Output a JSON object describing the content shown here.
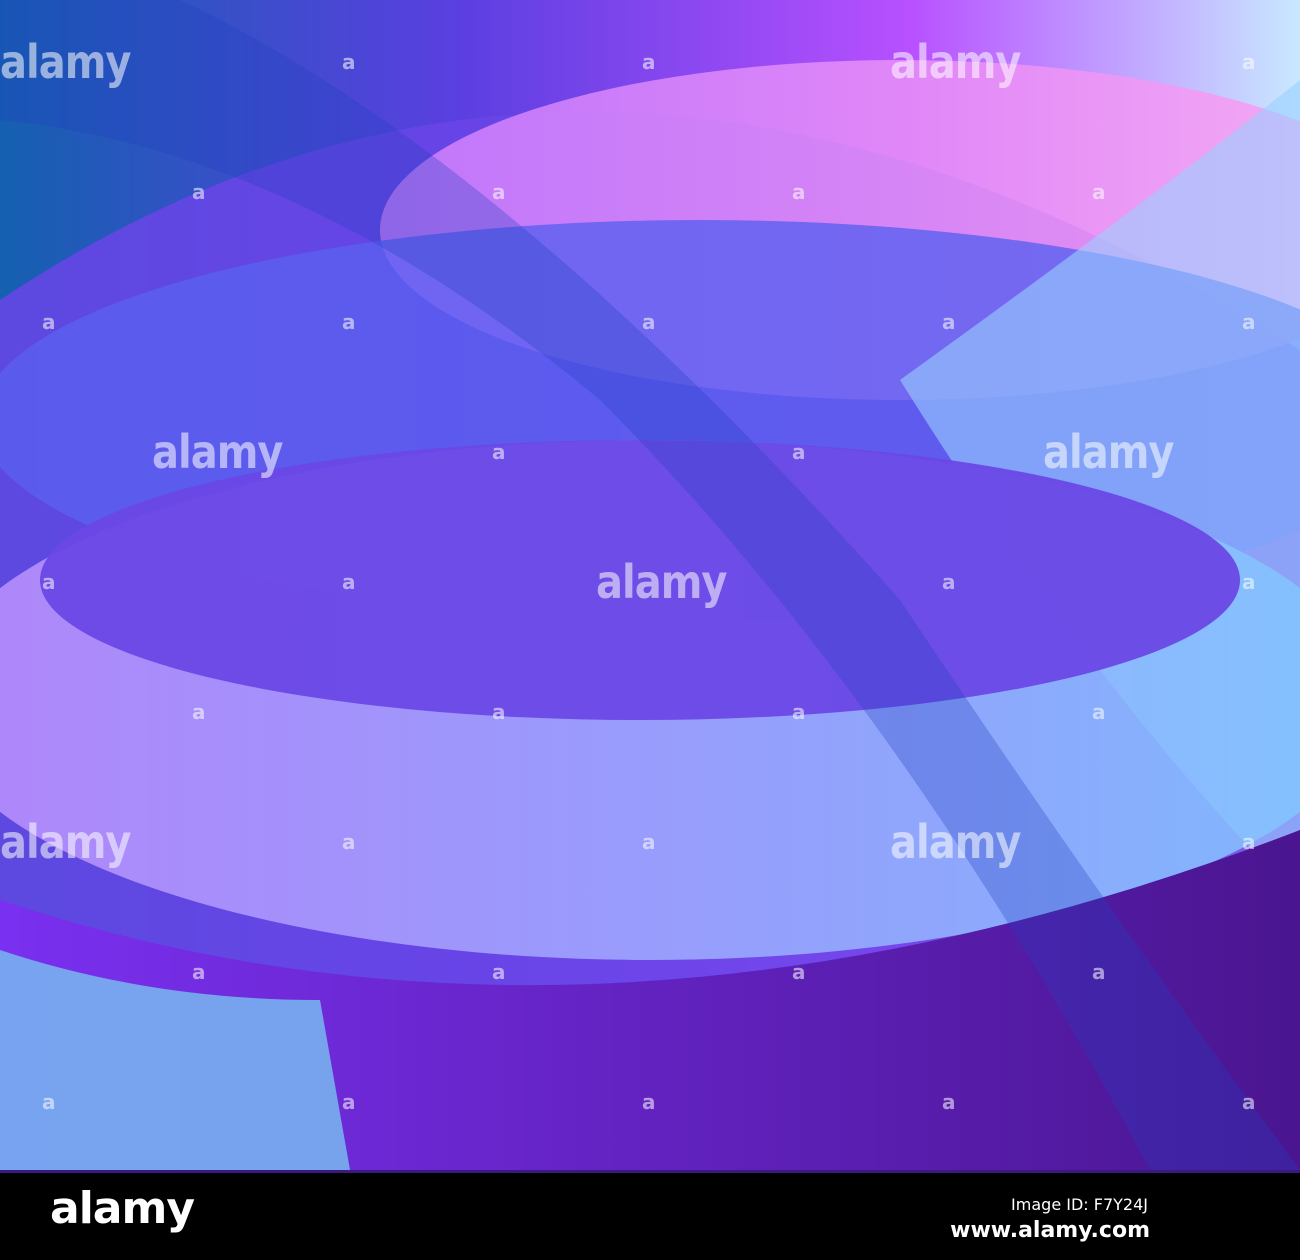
{
  "image": {
    "description_type": "abstract purple and blue wave background"
  },
  "colors": {
    "deep_blue": "#1560b0",
    "violet": "#6a3fe0",
    "pink": "#f090ff",
    "light_blue": "#9ad0ff",
    "dark_purple": "#4a1a9a"
  },
  "watermark": {
    "text": "alamy",
    "small": "a"
  },
  "footer": {
    "logo": "alamy",
    "image_id": "Image ID: F7Y24J",
    "site": "www.alamy.com"
  }
}
